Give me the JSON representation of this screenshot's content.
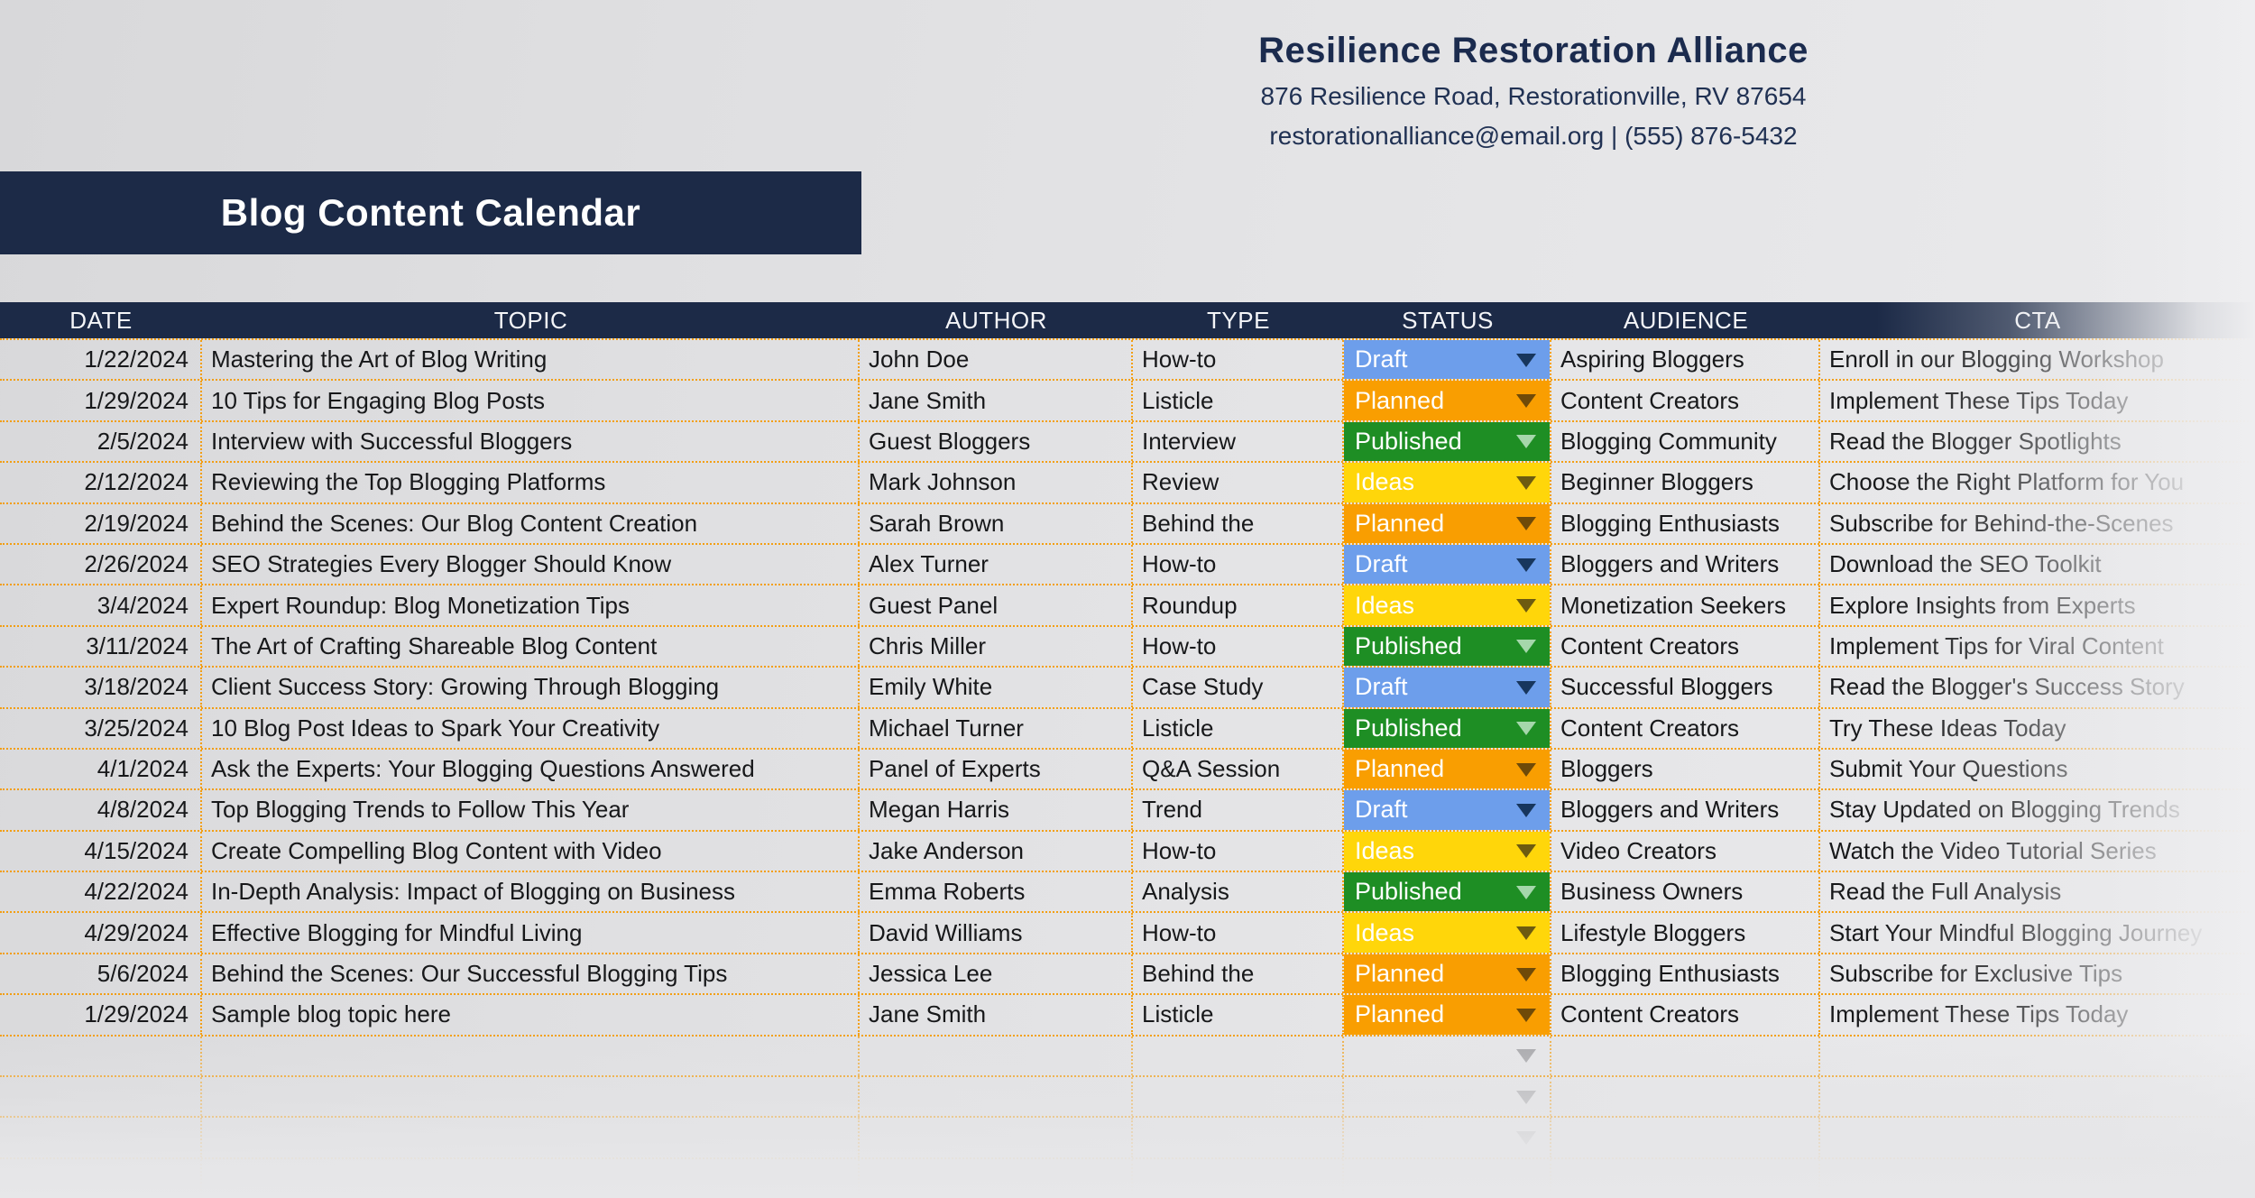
{
  "org": {
    "name": "Resilience Restoration Alliance",
    "address": "876 Resilience Road, Restorationville, RV 87654",
    "contact": "restorationalliance@email.org | (555) 876-5432"
  },
  "banner": {
    "title": "Blog Content Calendar"
  },
  "table": {
    "columns": [
      "DATE",
      "TOPIC",
      "AUTHOR",
      "TYPE",
      "STATUS",
      "AUDIENCE",
      "CTA"
    ],
    "rows": [
      {
        "date": "1/22/2024",
        "topic": "Mastering the Art of Blog Writing",
        "author": "John Doe",
        "type": "How-to",
        "status": "Draft",
        "audience": "Aspiring Bloggers",
        "cta": "Enroll in our Blogging Workshop"
      },
      {
        "date": "1/29/2024",
        "topic": "10 Tips for Engaging Blog Posts",
        "author": "Jane Smith",
        "type": "Listicle",
        "status": "Planned",
        "audience": "Content Creators",
        "cta": "Implement These Tips Today"
      },
      {
        "date": "2/5/2024",
        "topic": "Interview with Successful Bloggers",
        "author": "Guest Bloggers",
        "type": "Interview",
        "status": "Published",
        "audience": "Blogging Community",
        "cta": "Read the Blogger Spotlights"
      },
      {
        "date": "2/12/2024",
        "topic": "Reviewing the Top Blogging Platforms",
        "author": "Mark Johnson",
        "type": "Review",
        "status": "Ideas",
        "audience": "Beginner Bloggers",
        "cta": "Choose the Right Platform for You"
      },
      {
        "date": "2/19/2024",
        "topic": "Behind the Scenes: Our Blog Content Creation",
        "author": "Sarah Brown",
        "type": "Behind the",
        "status": "Planned",
        "audience": "Blogging Enthusiasts",
        "cta": "Subscribe for Behind-the-Scenes"
      },
      {
        "date": "2/26/2024",
        "topic": "SEO Strategies Every Blogger Should Know",
        "author": "Alex Turner",
        "type": "How-to",
        "status": "Draft",
        "audience": "Bloggers and Writers",
        "cta": "Download the SEO Toolkit"
      },
      {
        "date": "3/4/2024",
        "topic": "Expert Roundup: Blog Monetization Tips",
        "author": "Guest Panel",
        "type": "Roundup",
        "status": "Ideas",
        "audience": "Monetization Seekers",
        "cta": "Explore Insights from Experts"
      },
      {
        "date": "3/11/2024",
        "topic": "The Art of Crafting Shareable Blog Content",
        "author": "Chris Miller",
        "type": "How-to",
        "status": "Published",
        "audience": "Content Creators",
        "cta": "Implement Tips for Viral Content"
      },
      {
        "date": "3/18/2024",
        "topic": "Client Success Story: Growing Through Blogging",
        "author": "Emily White",
        "type": "Case Study",
        "status": "Draft",
        "audience": "Successful Bloggers",
        "cta": "Read the Blogger's Success Story"
      },
      {
        "date": "3/25/2024",
        "topic": "10 Blog Post Ideas to Spark Your Creativity",
        "author": "Michael Turner",
        "type": "Listicle",
        "status": "Published",
        "audience": "Content Creators",
        "cta": "Try These Ideas Today"
      },
      {
        "date": "4/1/2024",
        "topic": "Ask the Experts: Your Blogging Questions Answered",
        "author": "Panel of Experts",
        "type": "Q&A Session",
        "status": "Planned",
        "audience": "Bloggers",
        "cta": "Submit Your Questions"
      },
      {
        "date": "4/8/2024",
        "topic": "Top Blogging Trends to Follow This Year",
        "author": "Megan Harris",
        "type": "Trend",
        "status": "Draft",
        "audience": "Bloggers and Writers",
        "cta": "Stay Updated on Blogging Trends"
      },
      {
        "date": "4/15/2024",
        "topic": "Create Compelling Blog Content with Video",
        "author": "Jake Anderson",
        "type": "How-to",
        "status": "Ideas",
        "audience": "Video Creators",
        "cta": "Watch the Video Tutorial Series"
      },
      {
        "date": "4/22/2024",
        "topic": "In-Depth Analysis: Impact of Blogging on Business",
        "author": "Emma Roberts",
        "type": "Analysis",
        "status": "Published",
        "audience": "Business Owners",
        "cta": "Read the Full Analysis"
      },
      {
        "date": "4/29/2024",
        "topic": "Effective Blogging for Mindful Living",
        "author": "David Williams",
        "type": "How-to",
        "status": "Ideas",
        "audience": "Lifestyle Bloggers",
        "cta": "Start Your Mindful Blogging Journey"
      },
      {
        "date": "5/6/2024",
        "topic": "Behind the Scenes: Our Successful Blogging Tips",
        "author": "Jessica Lee",
        "type": "Behind the",
        "status": "Planned",
        "audience": "Blogging Enthusiasts",
        "cta": "Subscribe for Exclusive Tips"
      },
      {
        "date": "1/29/2024",
        "topic": "Sample blog topic here",
        "author": "Jane Smith",
        "type": "Listicle",
        "status": "Planned",
        "audience": "Content Creators",
        "cta": "Implement These Tips Today"
      }
    ],
    "empty_rows": 4,
    "empty_row_arrows": 3
  },
  "status_styles": {
    "Draft": {
      "bg": "#6d9eeb",
      "arrow": "#17365d"
    },
    "Planned": {
      "bg": "#f99e01",
      "arrow": "#6f4a08"
    },
    "Published": {
      "bg": "#1e8e24",
      "arrow": "#a5d7ab"
    },
    "Ideas": {
      "bg": "#ffd60a",
      "arrow": "#6d5b10"
    }
  },
  "colors": {
    "navy_band": "#1c2a47",
    "border_orange": "#f39b07",
    "background": "#e3e3e5"
  }
}
